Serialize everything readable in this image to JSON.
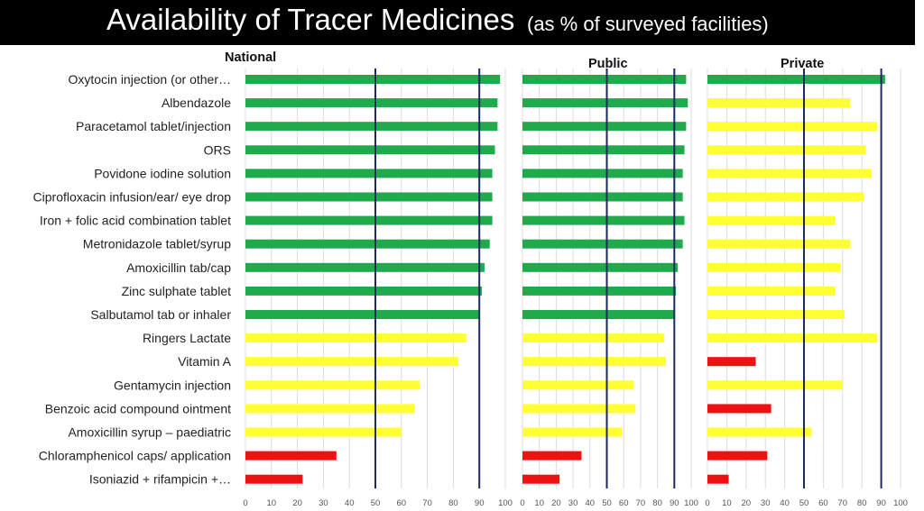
{
  "title": "Availability of Tracer Medicines",
  "subtitle": "(as % of surveyed facilities)",
  "colors": {
    "green": "#1faa4b",
    "yellow": "#ffff33",
    "red": "#ee1111",
    "ref_line": "#1f2a5c",
    "grid": "#dcdcdc"
  },
  "chart_data": {
    "type": "bar",
    "orientation": "horizontal",
    "categories": [
      "Oxytocin injection (or other…",
      "Albendazole",
      "Paracetamol tablet/injection",
      "ORS",
      "Povidone iodine solution",
      "Ciprofloxacin infusion/ear/ eye drop",
      "Iron + folic acid combination tablet",
      "Metronidazole tablet/syrup",
      "Amoxicillin tab/cap",
      "Zinc sulphate tablet",
      "Salbutamol tab or inhaler",
      "Ringers Lactate",
      "Vitamin A",
      "Gentamycin injection",
      "Benzoic acid compound ointment",
      "Amoxicillin syrup – paediatric",
      "Chloramphenicol caps/ application",
      "Isoniazid + rifampicin +…"
    ],
    "xlim": [
      0,
      100
    ],
    "ticks": [
      0,
      10,
      20,
      30,
      40,
      50,
      60,
      70,
      80,
      90,
      100
    ],
    "reference_lines": [
      50,
      90
    ],
    "grid": true,
    "panels": [
      {
        "name": "National",
        "values": [
          98,
          97,
          97,
          96,
          95,
          95,
          95,
          94,
          92,
          91,
          90,
          85,
          82,
          67,
          65,
          60,
          35,
          22
        ],
        "colors": [
          "green",
          "green",
          "green",
          "green",
          "green",
          "green",
          "green",
          "green",
          "green",
          "green",
          "green",
          "yellow",
          "yellow",
          "yellow",
          "yellow",
          "yellow",
          "red",
          "red"
        ]
      },
      {
        "name": "Public",
        "values": [
          97,
          98,
          97,
          96,
          95,
          95,
          96,
          95,
          92,
          91,
          90,
          84,
          85,
          66,
          67,
          59,
          35,
          22
        ],
        "colors": [
          "green",
          "green",
          "green",
          "green",
          "green",
          "green",
          "green",
          "green",
          "green",
          "green",
          "green",
          "yellow",
          "yellow",
          "yellow",
          "yellow",
          "yellow",
          "red",
          "red"
        ]
      },
      {
        "name": "Private",
        "values": [
          92,
          74,
          88,
          82,
          85,
          81,
          66,
          74,
          69,
          66,
          71,
          88,
          25,
          70,
          33,
          54,
          31,
          11
        ],
        "colors": [
          "green",
          "yellow",
          "yellow",
          "yellow",
          "yellow",
          "yellow",
          "yellow",
          "yellow",
          "yellow",
          "yellow",
          "yellow",
          "yellow",
          "red",
          "yellow",
          "red",
          "yellow",
          "red",
          "red"
        ]
      }
    ]
  }
}
